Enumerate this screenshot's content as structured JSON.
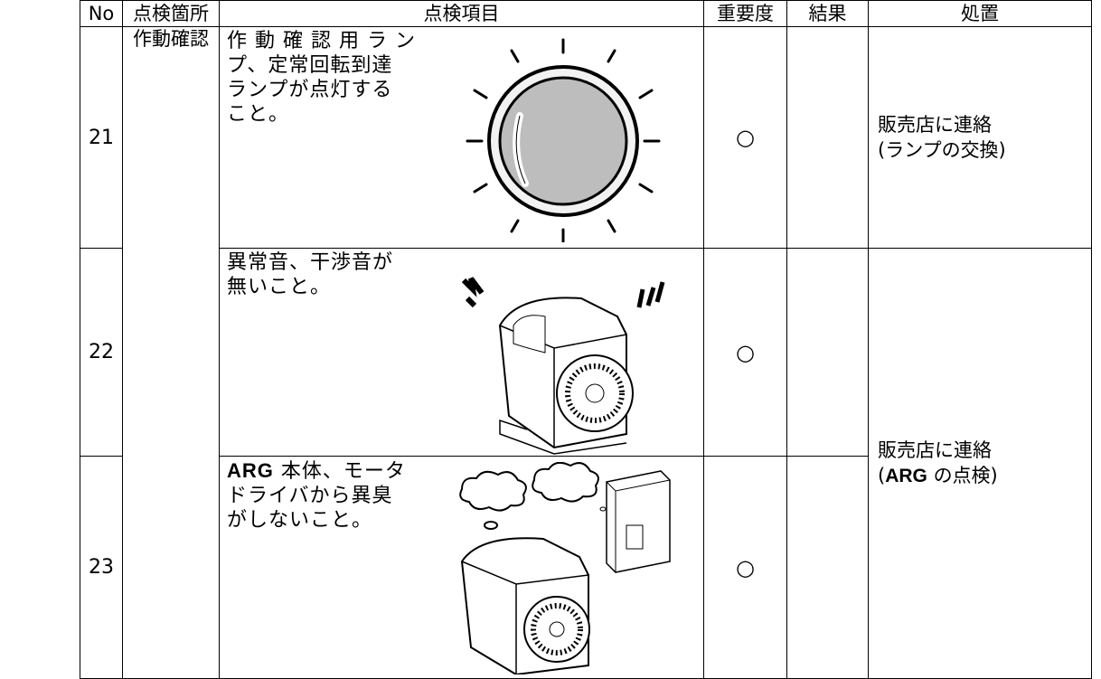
{
  "header": {
    "no": "No",
    "location": "点検箇所",
    "item": "点検項目",
    "importance": "重要度",
    "result": "結果",
    "action": "処置"
  },
  "location": "作動確認",
  "rows": [
    {
      "no": "21",
      "item_lines": [
        "作 動 確 認 用 ラ ン",
        "プ、定常回転到達",
        "ランプが点灯する",
        "こと。"
      ],
      "importance": "○",
      "action_lines": [
        "販売店に連絡",
        "(ランプの交換)"
      ]
    },
    {
      "no": "22",
      "item_lines": [
        "異常音、干渉音が",
        "無いこと。"
      ],
      "importance": "○"
    },
    {
      "no": "23",
      "item_lead": "ARG",
      "item_lines": [
        "本体、モータ",
        "ドライバから異臭",
        "がしないこと。"
      ],
      "importance": "○"
    }
  ],
  "shared_action": {
    "line1": "販売店に連絡",
    "open": "(",
    "bold": "ARG",
    "rest": "の点検)"
  }
}
